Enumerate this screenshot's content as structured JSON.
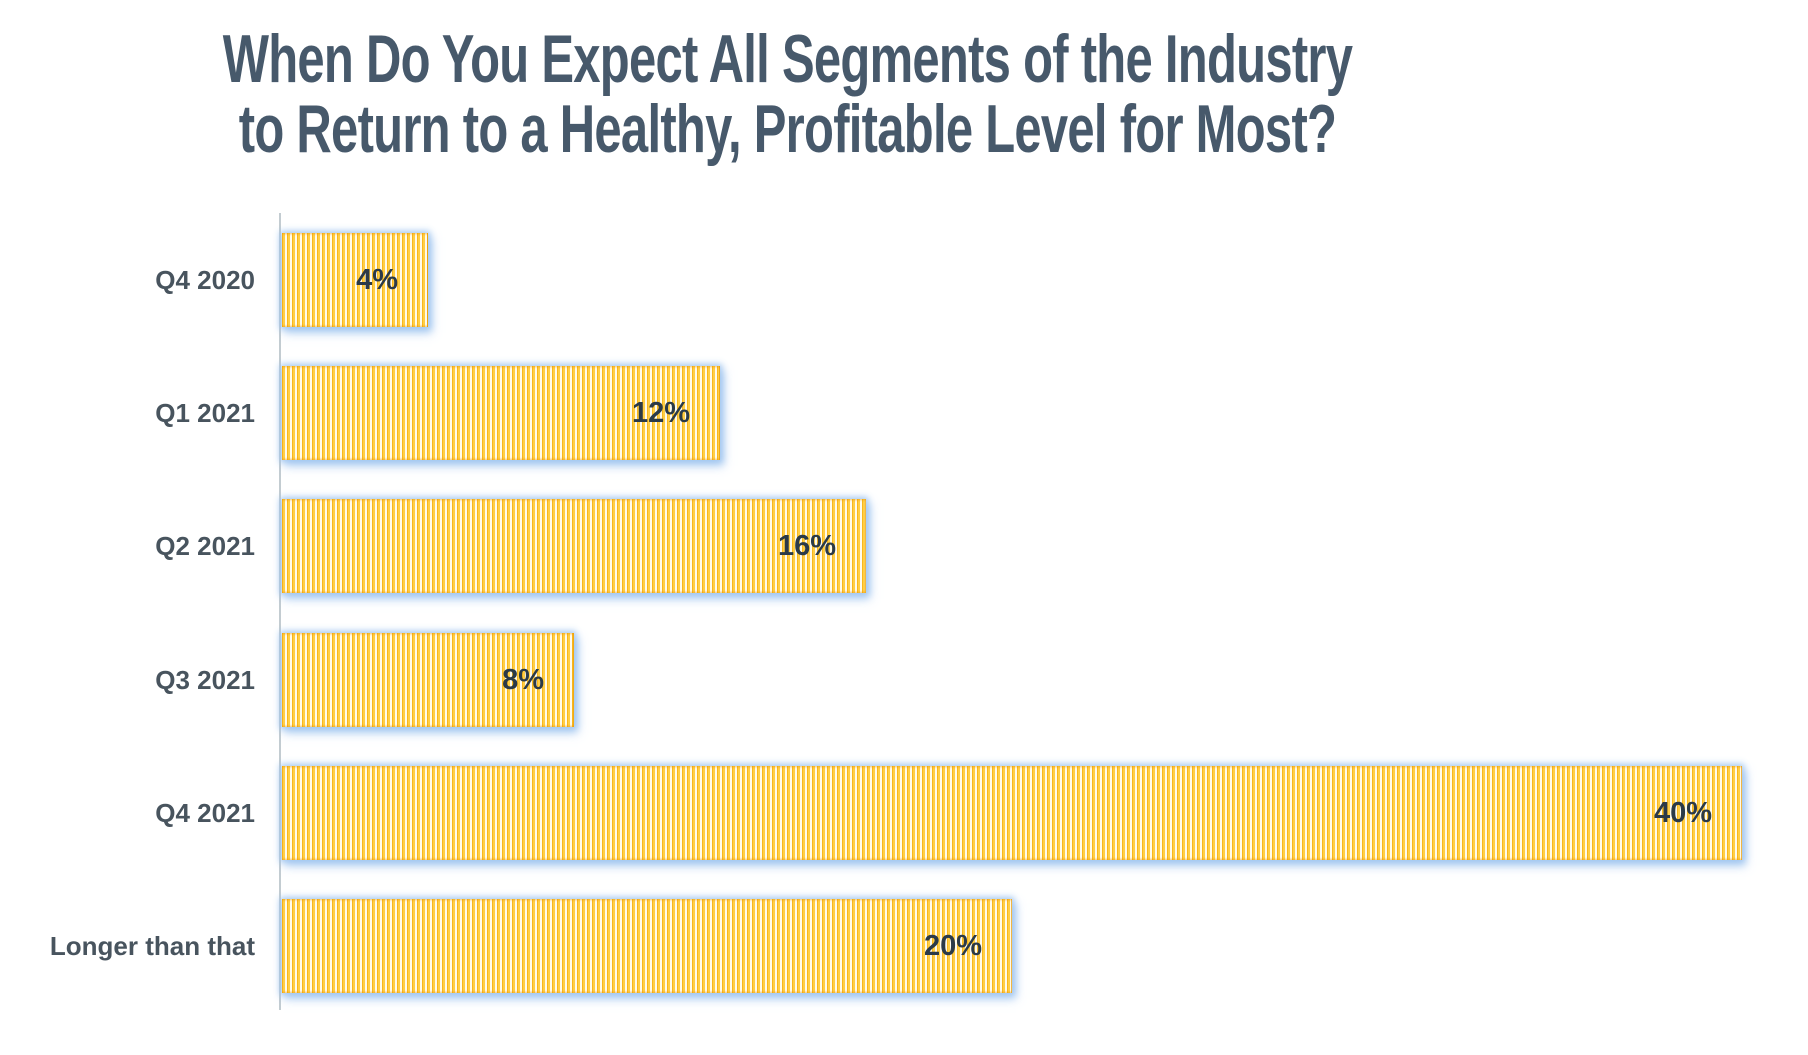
{
  "title": {
    "line1": "When Do You Expect All Segments of the Industry",
    "line2": "to Return to a Healthy, Profitable Level for Most?"
  },
  "chart_data": {
    "type": "bar",
    "orientation": "horizontal",
    "title": "When Do You Expect All Segments of the Industry to Return to a Healthy, Profitable Level for Most?",
    "categories": [
      "Q4 2020",
      "Q1 2021",
      "Q2 2021",
      "Q3 2021",
      "Q4 2021",
      "Longer than that"
    ],
    "values": [
      4,
      12,
      16,
      8,
      40,
      20
    ],
    "value_labels": [
      "4%",
      "12%",
      "16%",
      "8%",
      "40%",
      "20%"
    ],
    "unit": "percent",
    "xlim": [
      0,
      40
    ],
    "grid": false,
    "legend": "none",
    "value_label_position": "inside-end",
    "bar_style": "gold vertical pinstripes with light blue outer glow"
  },
  "colors": {
    "background": "#ffffff",
    "title_text": "#47596b",
    "category_label_text": "#48545e",
    "value_label_text": "#2b3a48",
    "bar_gold": "#ffc62e",
    "bar_stripe_light": "#fffbec",
    "bar_stripe_dark": "#f3a90a",
    "bar_glow": "#9ec4f0",
    "axis_line": "#c3ccd1"
  }
}
